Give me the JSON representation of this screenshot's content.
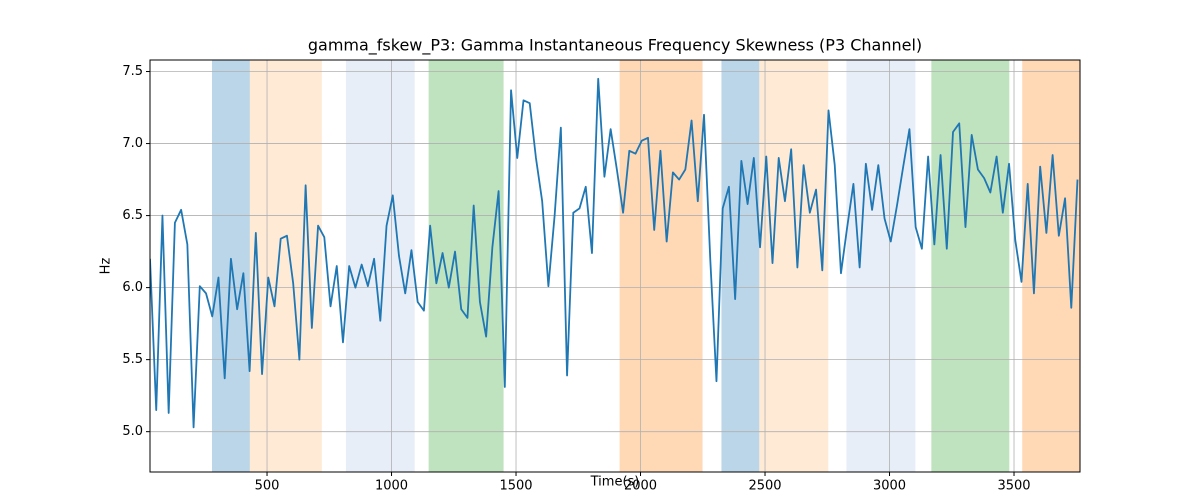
{
  "chart_data": {
    "type": "line",
    "title": "gamma_fskew_P3: Gamma Instantaneous Frequency Skewness (P3 Channel)",
    "x_label": "Time(s)",
    "y_label": "Hz",
    "xlim": [
      30,
      3765
    ],
    "ylim": [
      4.72,
      7.58
    ],
    "xticks": [
      500,
      1000,
      1500,
      2000,
      2500,
      3000,
      3500
    ],
    "yticks": [
      {
        "value": 5.0,
        "label": "5.0"
      },
      5.5,
      {
        "value": 6.0,
        "label": "6.0"
      },
      6.5,
      {
        "value": 7.0,
        "label": "7.0"
      },
      7.5
    ],
    "grid": true,
    "spans": [
      {
        "start": 279,
        "end": 431,
        "color": "#1f77b4"
      },
      {
        "start": 431,
        "end": 720,
        "color": "#ffbb78"
      },
      {
        "start": 817,
        "end": 1093,
        "color": "#aec7e8"
      },
      {
        "start": 1149,
        "end": 1450,
        "color": "#2ca02c"
      },
      {
        "start": 1916,
        "end": 2249,
        "color": "#ff7f0e"
      },
      {
        "start": 2325,
        "end": 2477,
        "color": "#1f77b4"
      },
      {
        "start": 2477,
        "end": 2754,
        "color": "#ffbb78"
      },
      {
        "start": 2827,
        "end": 3104,
        "color": "#aec7e8"
      },
      {
        "start": 3168,
        "end": 3481,
        "color": "#2ca02c"
      },
      {
        "start": 3533,
        "end": 3765,
        "color": "#ff7f0e"
      }
    ],
    "x": [
      30,
      55,
      80,
      105,
      130,
      155,
      180,
      205,
      230,
      255,
      280,
      305,
      330,
      355,
      380,
      405,
      430,
      455,
      480,
      505,
      530,
      555,
      580,
      605,
      630,
      655,
      680,
      705,
      730,
      755,
      780,
      805,
      830,
      855,
      880,
      905,
      930,
      955,
      980,
      1005,
      1030,
      1055,
      1080,
      1105,
      1130,
      1155,
      1180,
      1205,
      1230,
      1255,
      1280,
      1305,
      1330,
      1355,
      1380,
      1405,
      1430,
      1455,
      1480,
      1505,
      1530,
      1555,
      1580,
      1605,
      1630,
      1655,
      1680,
      1705,
      1730,
      1755,
      1780,
      1805,
      1830,
      1855,
      1880,
      1905,
      1930,
      1955,
      1980,
      2005,
      2030,
      2055,
      2080,
      2105,
      2130,
      2155,
      2180,
      2205,
      2230,
      2255,
      2280,
      2305,
      2330,
      2355,
      2380,
      2405,
      2430,
      2455,
      2480,
      2505,
      2530,
      2555,
      2580,
      2605,
      2630,
      2655,
      2680,
      2705,
      2730,
      2755,
      2780,
      2805,
      2830,
      2855,
      2880,
      2905,
      2930,
      2955,
      2980,
      3005,
      3030,
      3055,
      3080,
      3105,
      3130,
      3155,
      3180,
      3205,
      3230,
      3255,
      3280,
      3305,
      3330,
      3355,
      3380,
      3405,
      3430,
      3455,
      3480,
      3505,
      3530,
      3555,
      3580,
      3605,
      3630,
      3655,
      3680,
      3705,
      3730,
      3755
    ],
    "series": [
      {
        "color": "#1f77b4",
        "values": [
          6.2,
          5.15,
          6.5,
          5.13,
          6.45,
          6.54,
          6.3,
          5.03,
          6.01,
          5.96,
          5.8,
          6.07,
          5.37,
          6.2,
          5.85,
          6.1,
          5.42,
          6.38,
          5.4,
          6.07,
          5.87,
          6.34,
          6.36,
          6.03,
          5.5,
          6.71,
          5.72,
          6.43,
          6.35,
          5.87,
          6.15,
          5.62,
          6.15,
          6.0,
          6.16,
          6.01,
          6.2,
          5.77,
          6.43,
          6.64,
          6.22,
          5.96,
          6.26,
          5.9,
          5.84,
          6.43,
          6.03,
          6.24,
          6.0,
          6.25,
          5.85,
          5.79,
          6.57,
          5.9,
          5.66,
          6.28,
          6.67,
          5.31,
          7.37,
          6.9,
          7.3,
          7.28,
          6.9,
          6.6,
          6.01,
          6.5,
          7.11,
          5.39,
          6.52,
          6.55,
          6.7,
          6.24,
          7.45,
          6.77,
          7.1,
          6.82,
          6.52,
          6.95,
          6.93,
          7.02,
          7.04,
          6.4,
          6.95,
          6.32,
          6.8,
          6.75,
          6.82,
          7.16,
          6.6,
          7.2,
          6.2,
          5.35,
          6.55,
          6.7,
          5.92,
          6.88,
          6.58,
          6.9,
          6.28,
          6.91,
          6.17,
          6.9,
          6.6,
          6.96,
          6.14,
          6.85,
          6.52,
          6.68,
          6.12,
          7.23,
          6.85,
          6.1,
          6.42,
          6.72,
          6.14,
          6.86,
          6.54,
          6.85,
          6.48,
          6.32,
          6.57,
          6.84,
          7.1,
          6.42,
          6.27,
          6.91,
          6.3,
          6.92,
          6.27,
          7.08,
          7.14,
          6.42,
          7.06,
          6.82,
          6.76,
          6.66,
          6.91,
          6.52,
          6.86,
          6.33,
          6.04,
          6.72,
          5.96,
          6.84,
          6.38,
          6.92,
          6.36,
          6.62,
          5.86,
          6.75
        ]
      }
    ]
  }
}
